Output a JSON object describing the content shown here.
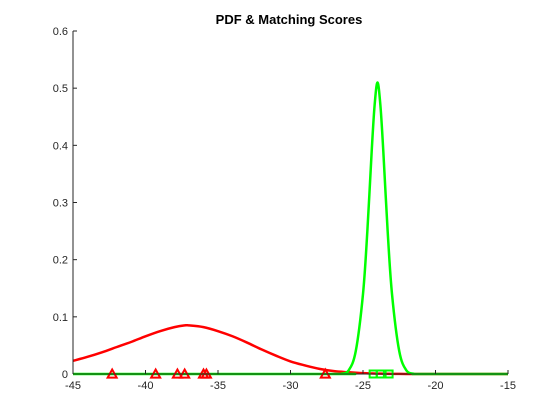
{
  "chart_data": {
    "type": "line",
    "title": "PDF & Matching Scores",
    "xlabel": "",
    "ylabel": "",
    "xlim": [
      -45,
      -15
    ],
    "ylim": [
      0,
      0.6
    ],
    "x_ticks": [
      "-45",
      "-40",
      "-35",
      "-30",
      "-25",
      "-20",
      "-15"
    ],
    "y_ticks": [
      "0",
      "0.1",
      "0.2",
      "0.3",
      "0.4",
      "0.5",
      "0.6"
    ],
    "grid": false,
    "legend": "none",
    "series": [
      {
        "kind": "curve",
        "color": "#ff0000",
        "x": [
          -45,
          -44,
          -43,
          -42,
          -41,
          -40,
          -39,
          -38,
          -37.3,
          -37,
          -36,
          -35,
          -34,
          -33,
          -32,
          -31,
          -30,
          -29,
          -28,
          -27,
          -26,
          -25,
          -24,
          -23,
          -22,
          -21,
          -20,
          -19,
          -18,
          -17,
          -16,
          -15
        ],
        "y": [
          0.023,
          0.03,
          0.038,
          0.047,
          0.056,
          0.066,
          0.075,
          0.082,
          0.085,
          0.085,
          0.082,
          0.075,
          0.066,
          0.055,
          0.043,
          0.032,
          0.022,
          0.015,
          0.009,
          0.005,
          0.003,
          0.0015,
          0.0007,
          0.0003,
          0.0001,
          5e-05,
          2e-05,
          0,
          0,
          0,
          0,
          0
        ]
      },
      {
        "kind": "curve",
        "color": "#00ff00",
        "x": [
          -45,
          -27,
          -26.5,
          -26,
          -25.5,
          -25,
          -24.7,
          -24.4,
          -24.2,
          -24.0,
          -23.8,
          -23.6,
          -23.3,
          -23,
          -22.5,
          -22,
          -21.5,
          -21,
          -15
        ],
        "y": [
          0,
          0,
          0.0005,
          0.006,
          0.04,
          0.14,
          0.25,
          0.39,
          0.47,
          0.51,
          0.47,
          0.39,
          0.25,
          0.14,
          0.04,
          0.006,
          0.0005,
          0,
          0
        ]
      },
      {
        "kind": "markers",
        "marker": "triangle",
        "color": "#ff0000",
        "x": [
          -42.3,
          -39.3,
          -37.8,
          -37.3,
          -36.0,
          -35.8,
          -27.6
        ],
        "y": [
          0,
          0,
          0,
          0,
          0,
          0,
          0
        ]
      },
      {
        "kind": "markers",
        "marker": "square",
        "color": "#00ff00",
        "x": [
          -24.3,
          -23.8,
          -23.2
        ],
        "y": [
          0,
          0,
          0
        ]
      }
    ]
  }
}
